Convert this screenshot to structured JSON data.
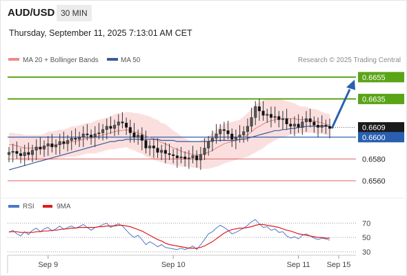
{
  "header": {
    "symbol": "AUD/USD",
    "timeframe": "30 MIN",
    "timestamp": "Thursday, September 11, 2025 7:13:01 AM CET"
  },
  "legend": {
    "bb_label": "MA 20 + Bollinger Bands",
    "ma50_label": "MA 50",
    "credit": "Research © 2025 Trading Central"
  },
  "rsi_legend": {
    "rsi_label": "RSI",
    "ma_label": "9MA"
  },
  "colors": {
    "bull": "#555555",
    "bear": "#111111",
    "band": "#f7c4c4",
    "ma20": "#e88080",
    "ma50": "#3b5b99",
    "green": "#5aa418",
    "blue": "#2a5faf",
    "red": "#e06060",
    "rsi": "#4a78cc",
    "rsi_ma": "#e01a1a"
  },
  "chart_data": {
    "type": "candlestick",
    "symbol": "AUD/USD",
    "ylim": [
      0.6548,
      0.6665
    ],
    "x_ticks": [
      "Sep 9",
      "Sep 10",
      "Sep 11",
      "Sep 15"
    ],
    "levels": [
      {
        "value": 0.6655,
        "label": "0.6655",
        "style": "green-badge"
      },
      {
        "value": 0.6635,
        "label": "0.6635",
        "style": "green-badge"
      },
      {
        "value": 0.6609,
        "label": "0.6609",
        "style": "black-badge"
      },
      {
        "value": 0.66,
        "label": "0.6600",
        "style": "blue-badge"
      },
      {
        "value": 0.658,
        "label": "0.6580",
        "style": "red-text"
      },
      {
        "value": 0.656,
        "label": "0.6560",
        "style": "red-text"
      }
    ],
    "projection": {
      "from": 0.6608,
      "to": 0.6652
    },
    "closes": [
      0.6586,
      0.6587,
      0.6585,
      0.6583,
      0.6586,
      0.6584,
      0.6588,
      0.6591,
      0.6589,
      0.6592,
      0.6594,
      0.6591,
      0.6593,
      0.6596,
      0.6594,
      0.6597,
      0.6599,
      0.6598,
      0.66,
      0.6603,
      0.6602,
      0.66,
      0.6603,
      0.6604,
      0.6607,
      0.661,
      0.6608,
      0.6611,
      0.6614,
      0.6613,
      0.6609,
      0.6604,
      0.66,
      0.6602,
      0.6597,
      0.659,
      0.6592,
      0.659,
      0.6586,
      0.6588,
      0.6585,
      0.6584,
      0.6583,
      0.6581,
      0.6582,
      0.658,
      0.6581,
      0.6583,
      0.6579,
      0.6584,
      0.659,
      0.6596,
      0.6599,
      0.6603,
      0.6607,
      0.6606,
      0.6603,
      0.6598,
      0.66,
      0.6602,
      0.6605,
      0.661,
      0.6618,
      0.6628,
      0.6624,
      0.662,
      0.6621,
      0.6618,
      0.6619,
      0.6616,
      0.6617,
      0.6612,
      0.661,
      0.6612,
      0.6609,
      0.6614,
      0.6617,
      0.6614,
      0.6611,
      0.6609,
      0.6611,
      0.661,
      0.6608
    ],
    "ma20": [
      0.6593,
      0.6593,
      0.6592,
      0.6591,
      0.659,
      0.659,
      0.659,
      0.659,
      0.659,
      0.6591,
      0.6592,
      0.6592,
      0.6593,
      0.6594,
      0.6594,
      0.6595,
      0.6596,
      0.6596,
      0.6597,
      0.6598,
      0.6599,
      0.6599,
      0.66,
      0.6601,
      0.6602,
      0.6603,
      0.6604,
      0.6605,
      0.6606,
      0.6606,
      0.6607,
      0.6606,
      0.6605,
      0.6604,
      0.6603,
      0.6601,
      0.66,
      0.6598,
      0.6597,
      0.6595,
      0.6594,
      0.6592,
      0.659,
      0.6589,
      0.6587,
      0.6586,
      0.6585,
      0.6584,
      0.6584,
      0.6584,
      0.6585,
      0.6586,
      0.6588,
      0.659,
      0.6592,
      0.6594,
      0.6595,
      0.6596,
      0.6597,
      0.6598,
      0.66,
      0.6602,
      0.6605,
      0.6608,
      0.661,
      0.6612,
      0.6614,
      0.6615,
      0.6616,
      0.6617,
      0.6617,
      0.6617,
      0.6617,
      0.6617,
      0.6616,
      0.6616,
      0.6616,
      0.6615,
      0.6615,
      0.6614,
      0.6613,
      0.6612,
      0.6611
    ],
    "bb_width": [
      0.0011,
      0.0011,
      0.0011,
      0.0012,
      0.0012,
      0.0012,
      0.0012,
      0.0012,
      0.0012,
      0.0012,
      0.0013,
      0.0013,
      0.0013,
      0.0013,
      0.0013,
      0.0013,
      0.0014,
      0.0014,
      0.0014,
      0.0014,
      0.0014,
      0.0014,
      0.0015,
      0.0015,
      0.0015,
      0.0015,
      0.0015,
      0.0016,
      0.0016,
      0.0016,
      0.0016,
      0.0017,
      0.0017,
      0.0018,
      0.0018,
      0.0019,
      0.0019,
      0.0019,
      0.0019,
      0.0018,
      0.0018,
      0.0017,
      0.0016,
      0.0015,
      0.0014,
      0.0013,
      0.0012,
      0.0012,
      0.0012,
      0.0013,
      0.0014,
      0.0015,
      0.0016,
      0.0017,
      0.0018,
      0.0018,
      0.0018,
      0.0018,
      0.0018,
      0.0018,
      0.0019,
      0.002,
      0.0021,
      0.0022,
      0.0022,
      0.0022,
      0.0021,
      0.002,
      0.0019,
      0.0018,
      0.0017,
      0.0016,
      0.0015,
      0.0014,
      0.0013,
      0.0012,
      0.0012,
      0.0011,
      0.0011,
      0.0011,
      0.001,
      0.001,
      0.001
    ],
    "ma50": [
      0.657,
      0.6571,
      0.6572,
      0.6573,
      0.6574,
      0.6575,
      0.6576,
      0.6577,
      0.6578,
      0.6579,
      0.658,
      0.6581,
      0.6582,
      0.6583,
      0.6584,
      0.6585,
      0.6586,
      0.6587,
      0.6588,
      0.6589,
      0.659,
      0.6591,
      0.6592,
      0.6593,
      0.6594,
      0.6595,
      0.6596,
      0.6596,
      0.6597,
      0.6597,
      0.6598,
      0.6598,
      0.6598,
      0.6598,
      0.6598,
      0.6598,
      0.6598,
      0.6598,
      0.6598,
      0.6597,
      0.6597,
      0.6597,
      0.6597,
      0.6596,
      0.6596,
      0.6596,
      0.6596,
      0.6596,
      0.6596,
      0.6596,
      0.6596,
      0.6596,
      0.6597,
      0.6597,
      0.6597,
      0.6597,
      0.6597,
      0.6597,
      0.6597,
      0.6598,
      0.6598,
      0.6599,
      0.66,
      0.6601,
      0.6602,
      0.6603,
      0.6604,
      0.6605,
      0.6606,
      0.6606,
      0.6607,
      0.6607,
      0.6608,
      0.6608,
      0.6609,
      0.6609,
      0.661,
      0.661,
      0.661,
      0.661,
      0.661,
      0.661,
      0.661
    ],
    "rsi": {
      "ylim": [
        25,
        80
      ],
      "ticks": [
        70,
        50,
        30
      ],
      "rsi": [
        57,
        60,
        55,
        52,
        58,
        54,
        60,
        63,
        58,
        62,
        64,
        59,
        62,
        66,
        61,
        64,
        66,
        63,
        65,
        68,
        64,
        60,
        64,
        65,
        68,
        70,
        64,
        67,
        69,
        66,
        60,
        54,
        50,
        53,
        47,
        40,
        44,
        41,
        37,
        40,
        36,
        35,
        34,
        33,
        35,
        33,
        35,
        38,
        33,
        40,
        47,
        55,
        58,
        63,
        67,
        64,
        60,
        55,
        57,
        60,
        63,
        67,
        72,
        75,
        69,
        64,
        65,
        60,
        62,
        57,
        58,
        52,
        49,
        51,
        48,
        53,
        55,
        52,
        49,
        47,
        49,
        48,
        46
      ],
      "ma9": [
        58,
        58,
        58,
        57,
        57,
        57,
        57,
        58,
        58,
        59,
        59,
        60,
        60,
        61,
        62,
        62,
        63,
        63,
        64,
        64,
        64,
        64,
        64,
        65,
        65,
        66,
        66,
        66,
        67,
        67,
        66,
        65,
        63,
        61,
        59,
        56,
        53,
        50,
        47,
        45,
        42,
        40,
        39,
        38,
        37,
        36,
        35,
        35,
        35,
        36,
        38,
        41,
        44,
        48,
        52,
        56,
        59,
        61,
        62,
        63,
        63,
        64,
        65,
        67,
        68,
        68,
        67,
        66,
        65,
        64,
        62,
        60,
        59,
        57,
        55,
        54,
        53,
        52,
        51,
        50,
        50,
        49,
        49
      ]
    }
  }
}
